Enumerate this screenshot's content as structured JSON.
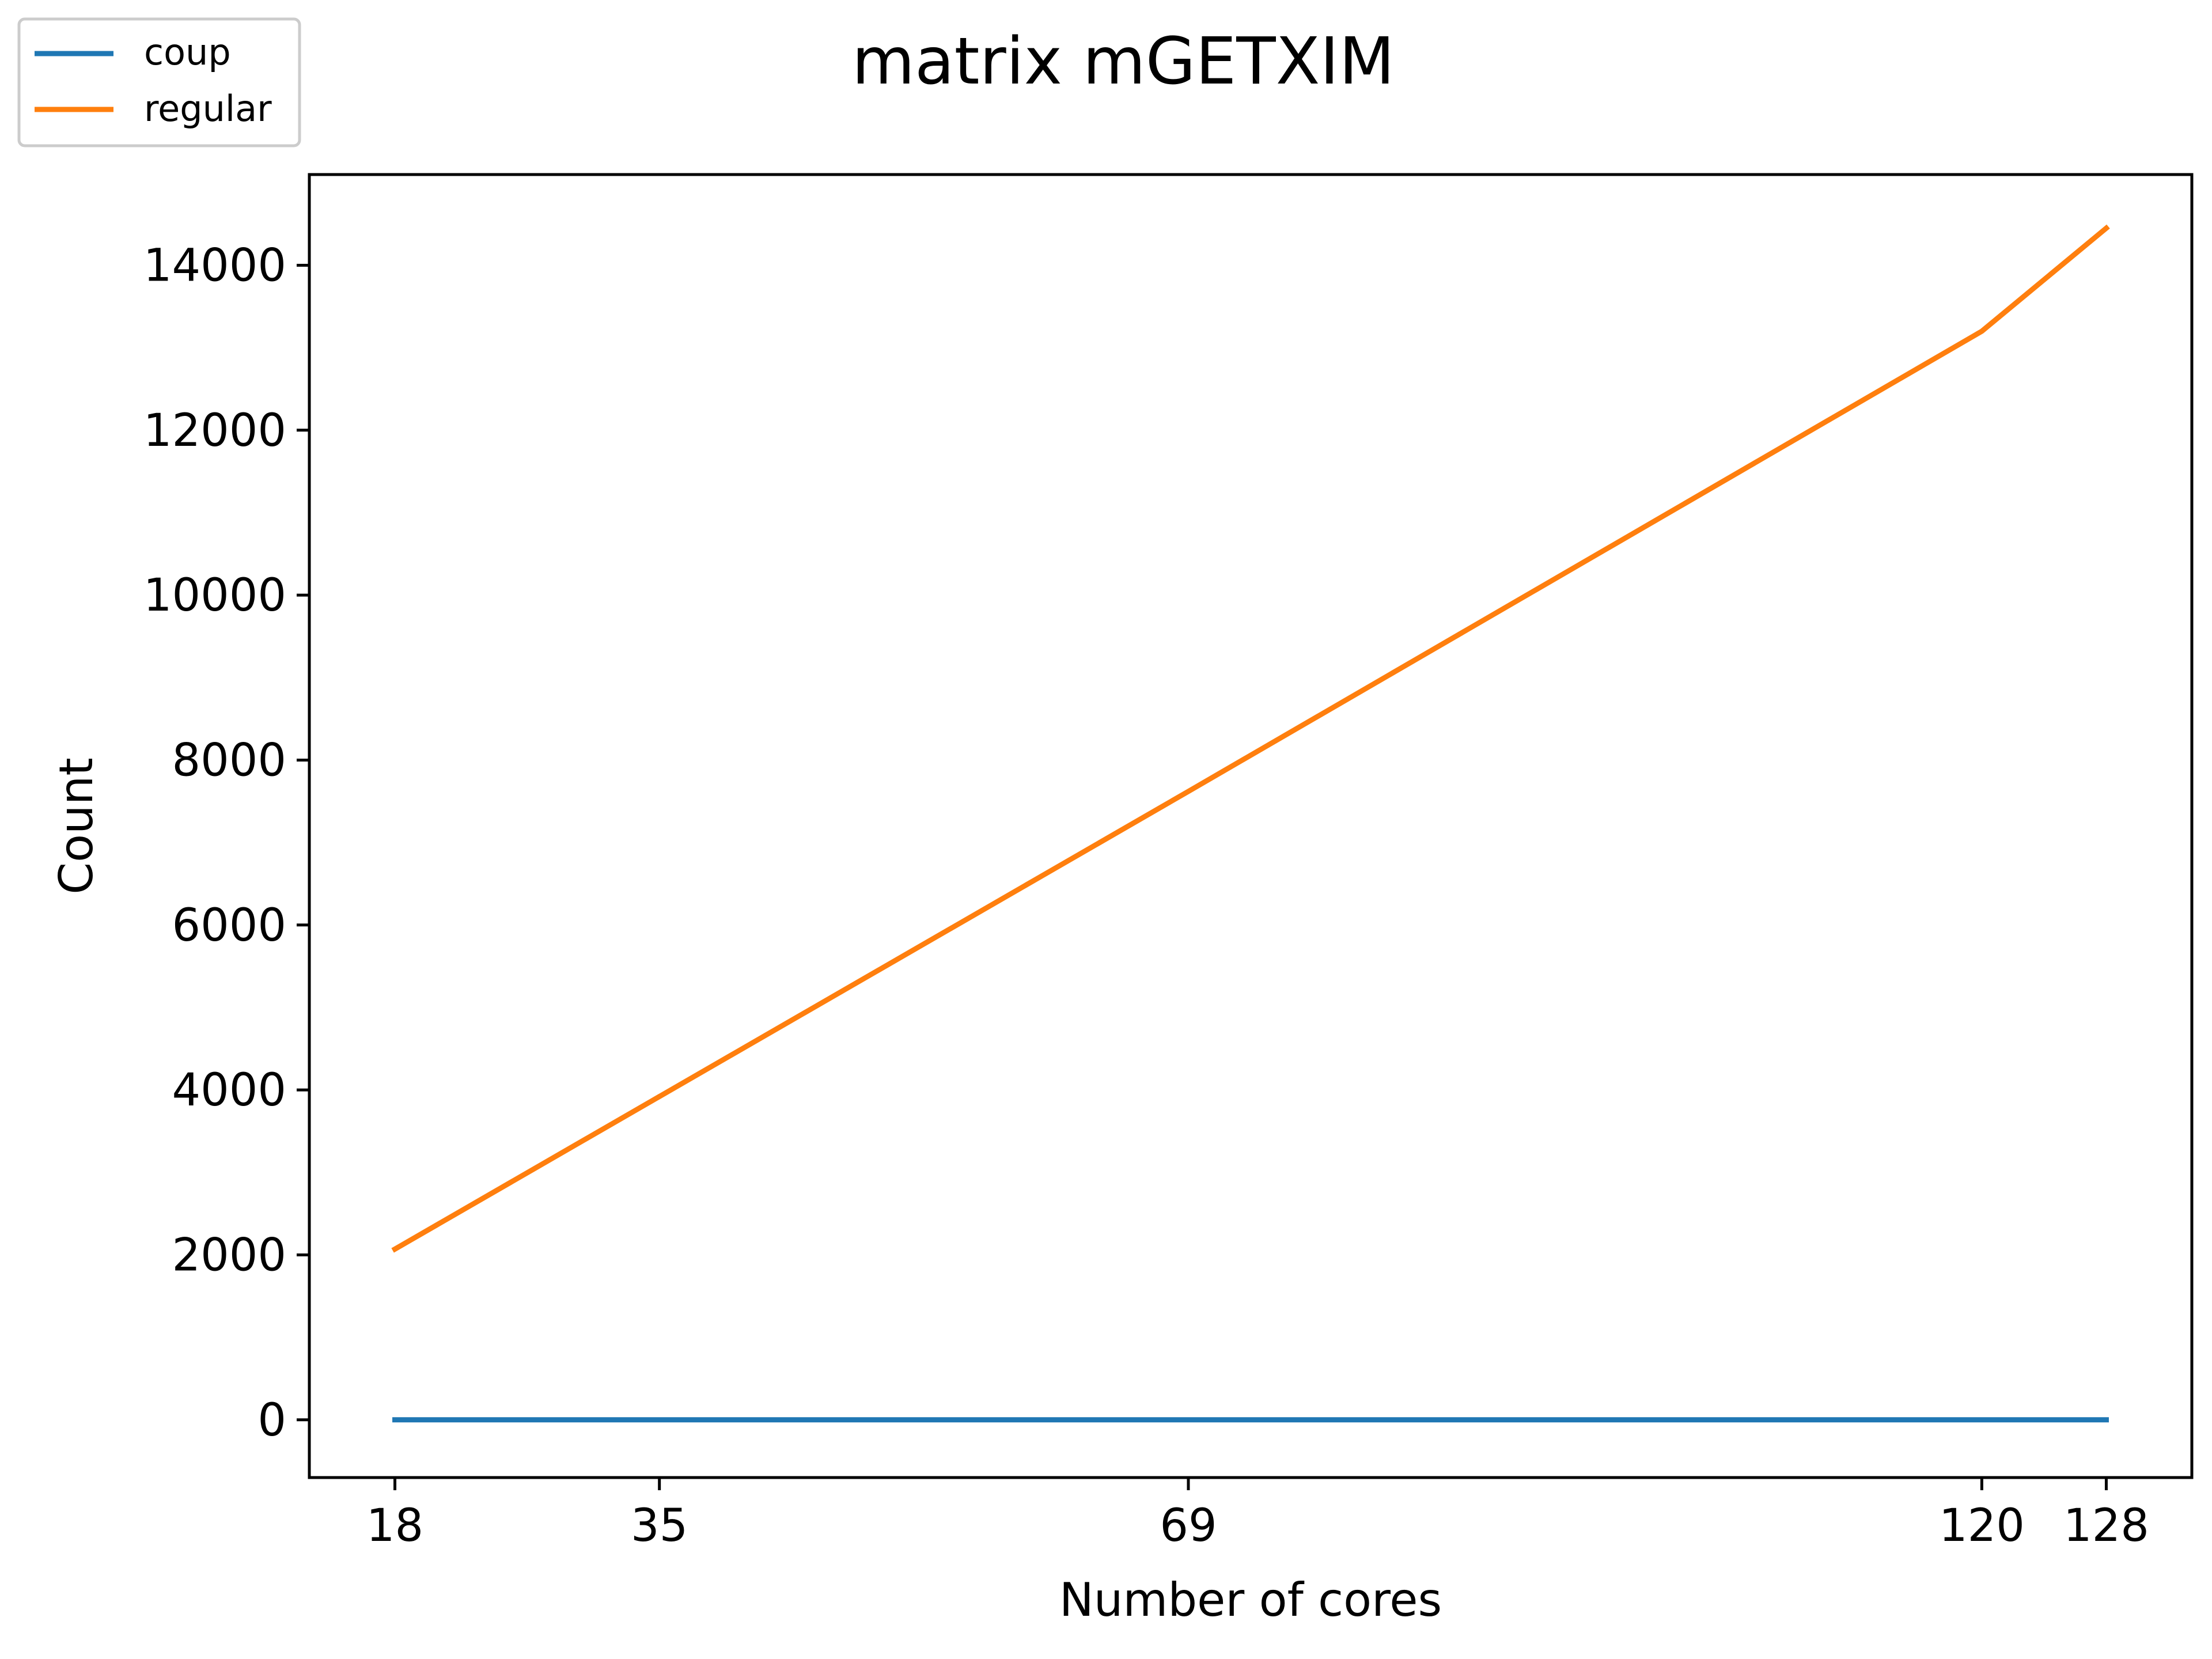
{
  "chart_data": {
    "type": "line",
    "title": "matrix mGETXIM",
    "xlabel": "Number of cores",
    "ylabel": "Count",
    "x": [
      18,
      35,
      69,
      120,
      128
    ],
    "xticks": [
      "18",
      "35",
      "69",
      "120",
      "128"
    ],
    "xlim": [
      12.5,
      133.5
    ],
    "ylim": [
      -700,
      15100
    ],
    "yticks": [
      0,
      2000,
      4000,
      6000,
      8000,
      10000,
      12000,
      14000
    ],
    "ytick_labels": [
      "0",
      "2000",
      "4000",
      "6000",
      "8000",
      "10000",
      "12000",
      "14000"
    ],
    "grid": false,
    "legend_position": "top-left",
    "series": [
      {
        "name": "coup",
        "color": "#1f77b4",
        "values": [
          0,
          0,
          0,
          0,
          0
        ]
      },
      {
        "name": "regular",
        "color": "#ff7f0e",
        "values": [
          2070,
          3920,
          7620,
          13200,
          14450
        ]
      }
    ]
  }
}
